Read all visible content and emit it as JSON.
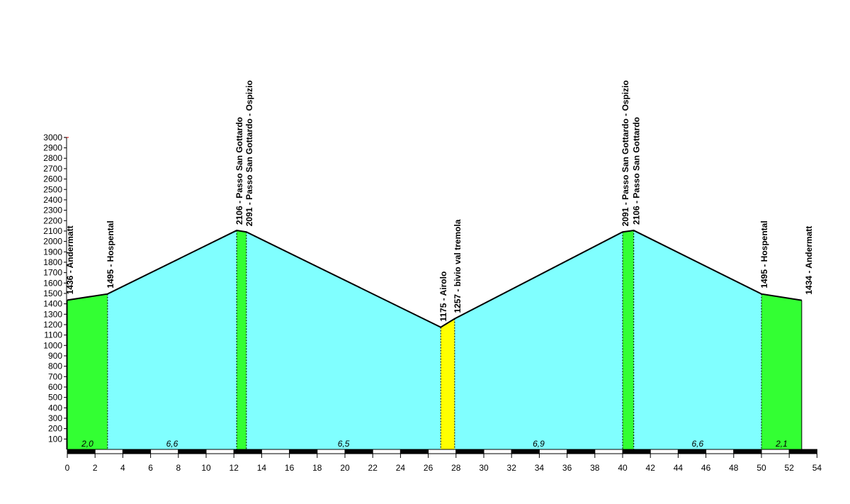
{
  "chart_data": {
    "type": "area",
    "title": "",
    "xlabel": "",
    "ylabel": "",
    "xlim": [
      0,
      54
    ],
    "ylim": [
      0,
      3000
    ],
    "x_ticks": [
      0,
      2,
      4,
      6,
      8,
      10,
      12,
      14,
      16,
      18,
      20,
      22,
      24,
      26,
      28,
      30,
      32,
      34,
      36,
      38,
      40,
      42,
      44,
      46,
      48,
      50,
      52,
      54
    ],
    "y_ticks": [
      100,
      200,
      300,
      400,
      500,
      600,
      700,
      800,
      900,
      1000,
      1100,
      1200,
      1300,
      1400,
      1500,
      1600,
      1700,
      1800,
      1900,
      2000,
      2100,
      2200,
      2300,
      2400,
      2500,
      2600,
      2700,
      2800,
      2900,
      3000
    ],
    "profile": [
      {
        "km": 0.0,
        "alt": 1436,
        "label": "1436 - Andermatt"
      },
      {
        "km": 2.9,
        "alt": 1495,
        "label": "1495 - Hospental"
      },
      {
        "km": 12.2,
        "alt": 2106,
        "label": "2106 - Passo San Gottardo"
      },
      {
        "km": 12.9,
        "alt": 2091,
        "label": "2091 - Passo San Gottardo - Ospizio"
      },
      {
        "km": 26.9,
        "alt": 1175,
        "label": "1175 - Airolo"
      },
      {
        "km": 27.9,
        "alt": 1257,
        "label": "1257 - bivio val tremola"
      },
      {
        "km": 40.0,
        "alt": 2091,
        "label": "2091 - Passo San Gottardo - Ospizio"
      },
      {
        "km": 40.8,
        "alt": 2106,
        "label": "2106 - Passo San Gottardo"
      },
      {
        "km": 50.0,
        "alt": 1495,
        "label": "1495 - Hospental"
      },
      {
        "km": 52.9,
        "alt": 1434,
        "label": "1434 - Andermatt"
      }
    ],
    "segments": [
      {
        "from_km": 0.0,
        "to_km": 2.9,
        "color": "#33ff33",
        "gradient": "2,0"
      },
      {
        "from_km": 2.9,
        "to_km": 12.2,
        "color": "#80ffff",
        "gradient": "6,6"
      },
      {
        "from_km": 12.2,
        "to_km": 12.9,
        "color": "#33ff33",
        "gradient": ""
      },
      {
        "from_km": 12.9,
        "to_km": 26.9,
        "color": "#80ffff",
        "gradient": "6,5"
      },
      {
        "from_km": 26.9,
        "to_km": 27.9,
        "color": "#ffff00",
        "gradient": ""
      },
      {
        "from_km": 27.9,
        "to_km": 40.0,
        "color": "#80ffff",
        "gradient": "6,9"
      },
      {
        "from_km": 40.0,
        "to_km": 40.8,
        "color": "#33ff33",
        "gradient": ""
      },
      {
        "from_km": 40.8,
        "to_km": 50.0,
        "color": "#80ffff",
        "gradient": "6,6"
      },
      {
        "from_km": 50.0,
        "to_km": 52.9,
        "color": "#33ff33",
        "gradient": "2,1"
      }
    ],
    "grid": false,
    "legend": "none"
  }
}
